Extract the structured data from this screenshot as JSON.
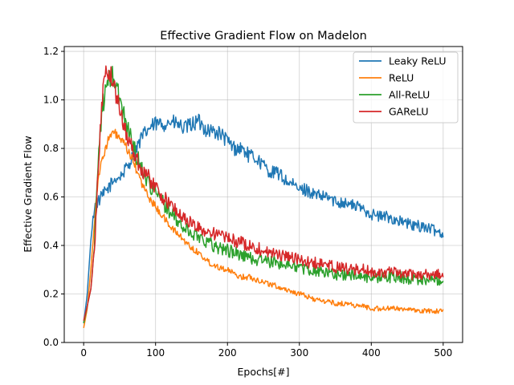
{
  "chart_data": {
    "type": "line",
    "title": "Effective Gradient Flow on Madelon",
    "xlabel": "Epochs[#]",
    "ylabel": "Effective Gradient Flow",
    "xlim": [
      -27,
      527
    ],
    "ylim": [
      0.0,
      1.22
    ],
    "x_ticks": [
      "0",
      "100",
      "200",
      "300",
      "400",
      "500"
    ],
    "y_ticks": [
      "0.0",
      "0.2",
      "0.4",
      "0.6",
      "0.8",
      "1.0",
      "1.2"
    ],
    "grid": true,
    "legend_position": "top-right",
    "x": [
      0,
      5,
      10,
      15,
      20,
      25,
      30,
      35,
      40,
      45,
      50,
      60,
      70,
      80,
      90,
      100,
      110,
      120,
      130,
      140,
      150,
      160,
      170,
      180,
      190,
      200,
      210,
      220,
      230,
      240,
      250,
      260,
      270,
      280,
      290,
      300,
      310,
      320,
      330,
      340,
      350,
      360,
      370,
      380,
      390,
      400,
      410,
      420,
      430,
      440,
      450,
      460,
      470,
      480,
      490,
      500
    ],
    "series": [
      {
        "name": "Leaky ReLU",
        "color": "#1f77b4",
        "values": [
          0.08,
          0.2,
          0.42,
          0.56,
          0.58,
          0.6,
          0.62,
          0.64,
          0.66,
          0.68,
          0.68,
          0.72,
          0.78,
          0.84,
          0.88,
          0.9,
          0.9,
          0.91,
          0.9,
          0.88,
          0.9,
          0.91,
          0.88,
          0.87,
          0.86,
          0.83,
          0.8,
          0.8,
          0.77,
          0.76,
          0.73,
          0.7,
          0.7,
          0.67,
          0.65,
          0.63,
          0.63,
          0.61,
          0.6,
          0.6,
          0.58,
          0.58,
          0.57,
          0.56,
          0.55,
          0.53,
          0.52,
          0.52,
          0.51,
          0.5,
          0.49,
          0.48,
          0.48,
          0.47,
          0.46,
          0.45
        ]
      },
      {
        "name": "ReLU",
        "color": "#ff7f0e",
        "values": [
          0.06,
          0.14,
          0.3,
          0.5,
          0.68,
          0.74,
          0.8,
          0.84,
          0.86,
          0.86,
          0.84,
          0.8,
          0.74,
          0.66,
          0.6,
          0.56,
          0.52,
          0.48,
          0.45,
          0.42,
          0.39,
          0.37,
          0.34,
          0.32,
          0.31,
          0.3,
          0.28,
          0.27,
          0.27,
          0.26,
          0.25,
          0.24,
          0.23,
          0.22,
          0.21,
          0.2,
          0.19,
          0.18,
          0.17,
          0.17,
          0.16,
          0.16,
          0.16,
          0.15,
          0.15,
          0.14,
          0.14,
          0.14,
          0.14,
          0.14,
          0.14,
          0.13,
          0.13,
          0.13,
          0.13,
          0.13
        ]
      },
      {
        "name": "All-ReLU",
        "color": "#2ca02c",
        "values": [
          0.08,
          0.15,
          0.22,
          0.4,
          0.75,
          0.95,
          1.03,
          1.08,
          1.1,
          1.06,
          1.0,
          0.9,
          0.8,
          0.72,
          0.66,
          0.62,
          0.58,
          0.54,
          0.5,
          0.47,
          0.45,
          0.44,
          0.42,
          0.4,
          0.39,
          0.38,
          0.37,
          0.36,
          0.35,
          0.34,
          0.34,
          0.33,
          0.33,
          0.32,
          0.32,
          0.31,
          0.3,
          0.3,
          0.29,
          0.29,
          0.28,
          0.28,
          0.28,
          0.28,
          0.27,
          0.27,
          0.27,
          0.27,
          0.27,
          0.27,
          0.26,
          0.26,
          0.26,
          0.26,
          0.26,
          0.26
        ]
      },
      {
        "name": "GAReLU",
        "color": "#d62728",
        "values": [
          0.09,
          0.15,
          0.22,
          0.38,
          0.7,
          0.98,
          1.12,
          1.12,
          1.08,
          1.02,
          0.96,
          0.86,
          0.78,
          0.72,
          0.68,
          0.64,
          0.6,
          0.57,
          0.54,
          0.51,
          0.49,
          0.47,
          0.46,
          0.45,
          0.44,
          0.43,
          0.42,
          0.41,
          0.4,
          0.39,
          0.38,
          0.37,
          0.36,
          0.36,
          0.35,
          0.34,
          0.33,
          0.33,
          0.32,
          0.32,
          0.31,
          0.31,
          0.3,
          0.3,
          0.3,
          0.29,
          0.29,
          0.29,
          0.29,
          0.28,
          0.28,
          0.28,
          0.28,
          0.28,
          0.28,
          0.28
        ]
      }
    ]
  }
}
